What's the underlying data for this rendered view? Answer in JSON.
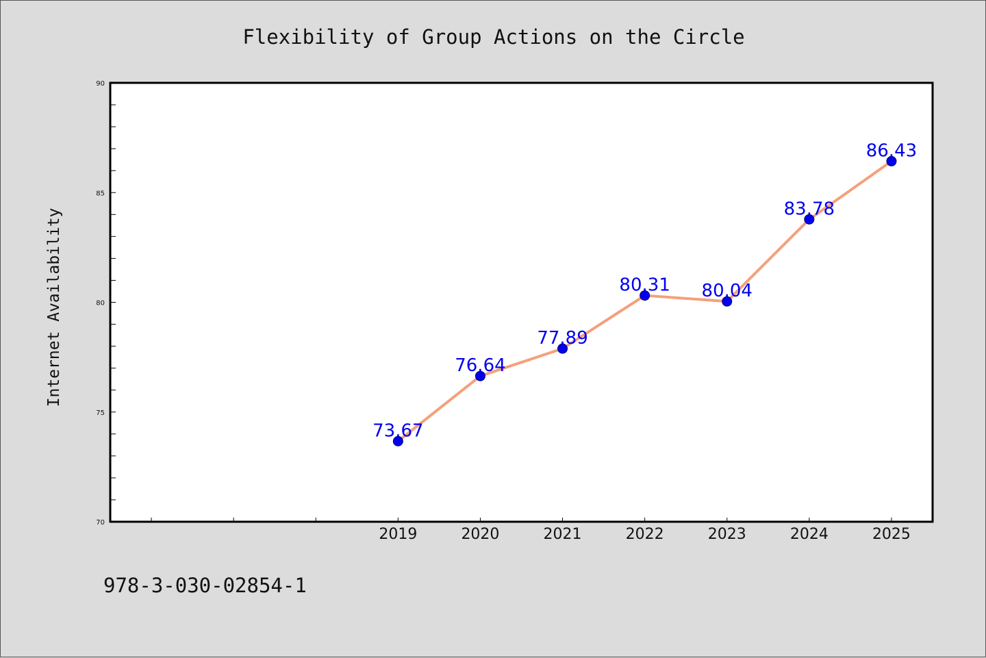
{
  "footer_text": "978-3-030-02854-1",
  "colors": {
    "background": "#dcdcdc",
    "plot_background": "#ffffff",
    "line": "#f4a07c",
    "marker": "#0000ee",
    "data_label": "#0000ee"
  },
  "chart_data": {
    "type": "line",
    "title": "Flexibility of Group Actions on the Circle",
    "xlabel": "",
    "ylabel": "Internet Availability",
    "x": [
      "2019",
      "2020",
      "2021",
      "2022",
      "2023",
      "2024",
      "2025"
    ],
    "x_unlabeled_slots_before": 3,
    "y_ticks": [
      "70",
      "75",
      "80",
      "85",
      "90"
    ],
    "ylim": [
      70,
      90
    ],
    "series": [
      {
        "values": [
          73.67,
          76.64,
          77.89,
          80.31,
          80.04,
          83.78,
          86.43
        ],
        "labels": [
          "73.67",
          "76.64",
          "77.89",
          "80.31",
          "80.04",
          "83.78",
          "86.43"
        ]
      }
    ],
    "grid": false,
    "legend": "none",
    "markers": true,
    "data_labels": true
  }
}
